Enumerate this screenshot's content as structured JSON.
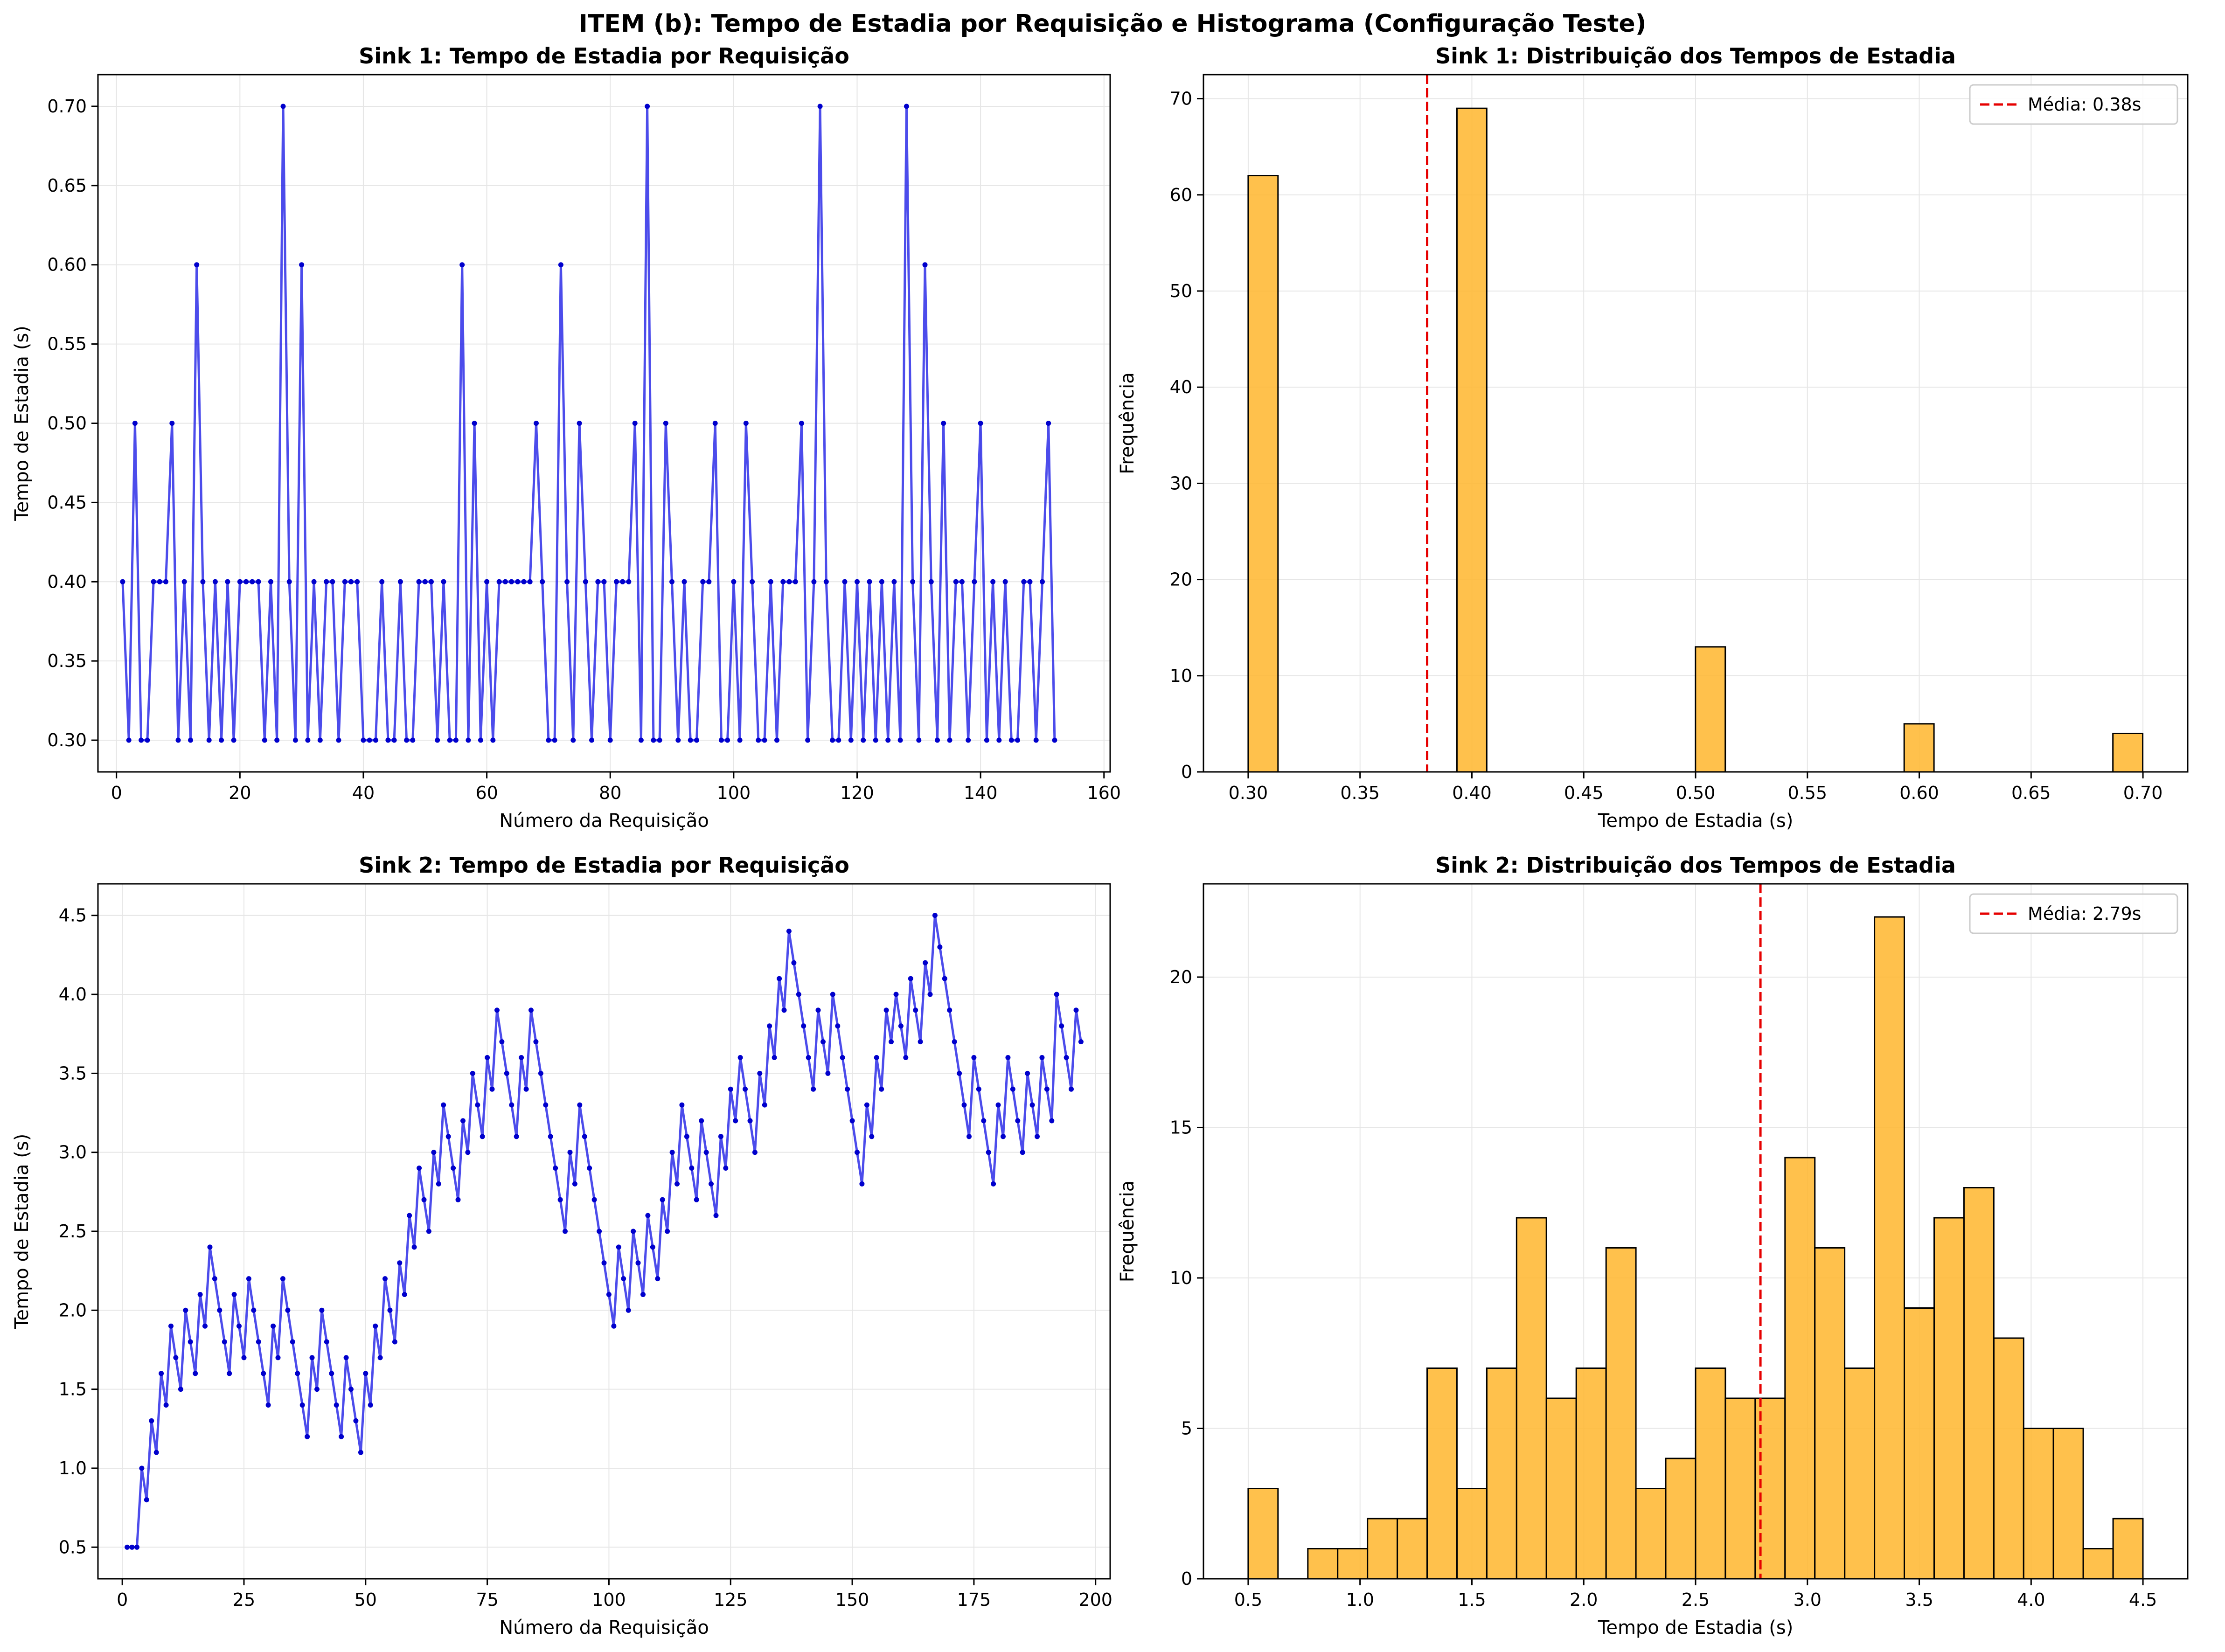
{
  "suptitle": "ITEM (b): Tempo de Estadia por Requisição e Histograma (Configuração Teste)",
  "colors": {
    "line": "#1a1ae6",
    "bar": "#ffb833",
    "bar_edge": "#000000",
    "mean": "#e60000",
    "grid": "#e6e6e6"
  },
  "chart_data": [
    {
      "type": "line",
      "title": "Sink 1: Tempo de Estadia por Requisição",
      "xlabel": "Número da Requisição",
      "ylabel": "Tempo de Estadia (s)",
      "xlim": [
        -3,
        161
      ],
      "ylim": [
        0.28,
        0.72
      ],
      "xticks": [
        0,
        20,
        40,
        60,
        80,
        100,
        120,
        140,
        160
      ],
      "yticks": [
        0.3,
        0.35,
        0.4,
        0.45,
        0.5,
        0.55,
        0.6,
        0.65,
        0.7
      ],
      "ytick_decimals": 2,
      "grid": true,
      "series": [
        {
          "x_start": 1,
          "values": [
            0.4,
            0.3,
            0.5,
            0.3,
            0.3,
            0.4,
            0.4,
            0.4,
            0.5,
            0.3,
            0.4,
            0.3,
            0.6,
            0.4,
            0.3,
            0.4,
            0.3,
            0.4,
            0.3,
            0.4,
            0.4,
            0.4,
            0.4,
            0.3,
            0.4,
            0.3,
            0.7,
            0.4,
            0.3,
            0.6,
            0.3,
            0.4,
            0.3,
            0.4,
            0.4,
            0.3,
            0.4,
            0.4,
            0.4,
            0.3,
            0.3,
            0.3,
            0.4,
            0.3,
            0.3,
            0.4,
            0.3,
            0.3,
            0.4,
            0.4,
            0.4,
            0.3,
            0.4,
            0.3,
            0.3,
            0.6,
            0.3,
            0.5,
            0.3,
            0.4,
            0.3,
            0.4,
            0.4,
            0.4,
            0.4,
            0.4,
            0.4,
            0.5,
            0.4,
            0.3,
            0.3,
            0.6,
            0.4,
            0.3,
            0.5,
            0.4,
            0.3,
            0.4,
            0.4,
            0.3,
            0.4,
            0.4,
            0.4,
            0.5,
            0.3,
            0.7,
            0.3,
            0.3,
            0.5,
            0.4,
            0.3,
            0.4,
            0.3,
            0.3,
            0.4,
            0.4,
            0.5,
            0.3,
            0.3,
            0.4,
            0.3,
            0.5,
            0.4,
            0.3,
            0.3,
            0.4,
            0.3,
            0.4,
            0.4,
            0.4,
            0.5,
            0.3,
            0.4,
            0.7,
            0.4,
            0.3,
            0.3,
            0.4,
            0.3,
            0.4,
            0.3,
            0.4,
            0.3,
            0.4,
            0.3,
            0.4,
            0.3,
            0.7,
            0.4,
            0.3,
            0.6,
            0.4,
            0.3,
            0.5,
            0.3,
            0.4,
            0.4,
            0.3,
            0.4,
            0.5,
            0.3,
            0.4,
            0.3,
            0.4,
            0.3,
            0.3,
            0.4,
            0.4,
            0.3,
            0.4,
            0.5,
            0.3
          ]
        }
      ]
    },
    {
      "type": "bar",
      "title": "Sink 1: Distribuição dos Tempos de Estadia",
      "xlabel": "Tempo de Estadia (s)",
      "ylabel": "Frequência",
      "xlim": [
        0.28,
        0.72
      ],
      "ylim": [
        0,
        72.5
      ],
      "xticks": [
        0.3,
        0.35,
        0.4,
        0.45,
        0.5,
        0.55,
        0.6,
        0.65,
        0.7
      ],
      "xtick_decimals": 2,
      "yticks": [
        0,
        10,
        20,
        30,
        40,
        50,
        60,
        70
      ],
      "bin_start": 0.3,
      "bin_width": 0.01333,
      "bins": 30,
      "bin_values": {
        "0": 62,
        "7": 69,
        "15": 13,
        "22": 5,
        "29": 4
      },
      "mean_line": {
        "x": 0.38,
        "label": "Média: 0.38s"
      },
      "legend": "top-right",
      "grid": true
    },
    {
      "type": "line",
      "title": "Sink 2: Tempo de Estadia por Requisição",
      "xlabel": "Número da Requisição",
      "ylabel": "Tempo de Estadia (s)",
      "xlim": [
        -5,
        203
      ],
      "ylim": [
        0.3,
        4.7
      ],
      "xticks": [
        0,
        25,
        50,
        75,
        100,
        125,
        150,
        175,
        200
      ],
      "yticks": [
        0.5,
        1.0,
        1.5,
        2.0,
        2.5,
        3.0,
        3.5,
        4.0,
        4.5
      ],
      "ytick_decimals": 1,
      "grid": true,
      "series": [
        {
          "x_start": 1,
          "values": [
            0.5,
            0.5,
            0.5,
            1.0,
            0.8,
            1.3,
            1.1,
            1.6,
            1.4,
            1.9,
            1.7,
            1.5,
            2.0,
            1.8,
            1.6,
            2.1,
            1.9,
            2.4,
            2.2,
            2.0,
            1.8,
            1.6,
            2.1,
            1.9,
            1.7,
            2.2,
            2.0,
            1.8,
            1.6,
            1.4,
            1.9,
            1.7,
            2.2,
            2.0,
            1.8,
            1.6,
            1.4,
            1.2,
            1.7,
            1.5,
            2.0,
            1.8,
            1.6,
            1.4,
            1.2,
            1.7,
            1.5,
            1.3,
            1.1,
            1.6,
            1.4,
            1.9,
            1.7,
            2.2,
            2.0,
            1.8,
            2.3,
            2.1,
            2.6,
            2.4,
            2.9,
            2.7,
            2.5,
            3.0,
            2.8,
            3.3,
            3.1,
            2.9,
            2.7,
            3.2,
            3.0,
            3.5,
            3.3,
            3.1,
            3.6,
            3.4,
            3.9,
            3.7,
            3.5,
            3.3,
            3.1,
            3.6,
            3.4,
            3.9,
            3.7,
            3.5,
            3.3,
            3.1,
            2.9,
            2.7,
            2.5,
            3.0,
            2.8,
            3.3,
            3.1,
            2.9,
            2.7,
            2.5,
            2.3,
            2.1,
            1.9,
            2.4,
            2.2,
            2.0,
            2.5,
            2.3,
            2.1,
            2.6,
            2.4,
            2.2,
            2.7,
            2.5,
            3.0,
            2.8,
            3.3,
            3.1,
            2.9,
            2.7,
            3.2,
            3.0,
            2.8,
            2.6,
            3.1,
            2.9,
            3.4,
            3.2,
            3.6,
            3.4,
            3.2,
            3.0,
            3.5,
            3.3,
            3.8,
            3.6,
            4.1,
            3.9,
            4.4,
            4.2,
            4.0,
            3.8,
            3.6,
            3.4,
            3.9,
            3.7,
            3.5,
            4.0,
            3.8,
            3.6,
            3.4,
            3.2,
            3.0,
            2.8,
            3.3,
            3.1,
            3.6,
            3.4,
            3.9,
            3.7,
            4.0,
            3.8,
            3.6,
            4.1,
            3.9,
            3.7,
            4.2,
            4.0,
            4.5,
            4.3,
            4.1,
            3.9,
            3.7,
            3.5,
            3.3,
            3.1,
            3.6,
            3.4,
            3.2,
            3.0,
            2.8,
            3.3,
            3.1,
            3.6,
            3.4,
            3.2,
            3.0,
            3.5,
            3.3,
            3.1,
            3.6,
            3.4,
            3.2,
            4.0,
            3.8,
            3.6,
            3.4,
            3.9,
            3.7
          ]
        }
      ]
    },
    {
      "type": "bar",
      "title": "Sink 2: Distribuição dos Tempos de Estadia",
      "xlabel": "Tempo de Estadia (s)",
      "ylabel": "Frequência",
      "xlim": [
        0.3,
        4.7
      ],
      "ylim": [
        0,
        23.1
      ],
      "xticks": [
        0.5,
        1.0,
        1.5,
        2.0,
        2.5,
        3.0,
        3.5,
        4.0,
        4.5
      ],
      "xtick_decimals": 1,
      "yticks": [
        0,
        5,
        10,
        15,
        20
      ],
      "bin_start": 0.5,
      "bin_width": 0.13333,
      "bins": 30,
      "values": [
        3,
        0,
        1,
        1,
        2,
        2,
        7,
        3,
        7,
        12,
        6,
        7,
        11,
        3,
        4,
        7,
        6,
        6,
        14,
        11,
        7,
        22,
        9,
        12,
        13,
        8,
        5,
        5,
        1,
        2
      ],
      "mean_line": {
        "x": 2.79,
        "label": "Média: 2.79s"
      },
      "legend": "top-right",
      "grid": true
    }
  ]
}
